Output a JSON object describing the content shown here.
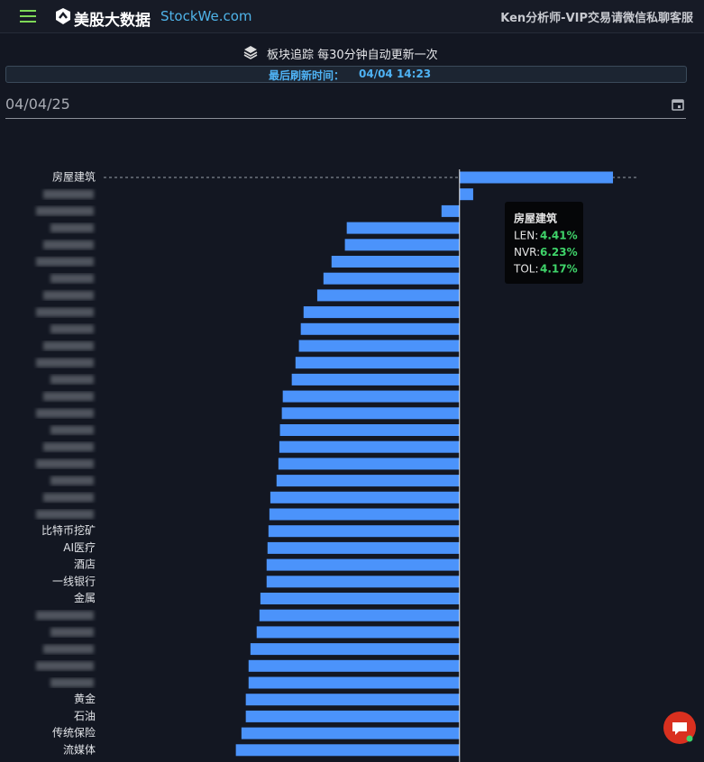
{
  "header": {
    "brand": "美股大数据",
    "site": "StockWe.com",
    "account": "Ken分析师-VIP交易请微信私聊客服"
  },
  "subheader": "板块追踪 每30分钟自动更新一次",
  "refresh": {
    "label": "最后刷新时间：",
    "time": "04/04 14:23"
  },
  "date": "04/04/25",
  "chart_data": {
    "type": "hbar",
    "color": "#4b93fb",
    "categories": [
      "房屋建筑",
      null,
      null,
      null,
      null,
      null,
      null,
      null,
      null,
      null,
      null,
      null,
      null,
      null,
      null,
      null,
      null,
      null,
      null,
      null,
      null,
      "比特币挖矿",
      "AI医疗",
      "酒店",
      "一线银行",
      "金属",
      null,
      null,
      null,
      null,
      null,
      "黄金",
      "石油",
      "传统保险",
      "流媒体"
    ],
    "values": [
      4.94,
      0.44,
      -0.58,
      -3.63,
      -3.69,
      -4.12,
      -4.38,
      -4.58,
      -5.02,
      -5.11,
      -5.17,
      -5.28,
      -5.4,
      -5.69,
      -5.72,
      -5.78,
      -5.8,
      -5.83,
      -5.89,
      -6.09,
      -6.12,
      -6.15,
      -6.18,
      -6.21,
      -6.21,
      -6.41,
      -6.44,
      -6.53,
      -6.73,
      -6.79,
      -6.79,
      -6.88,
      -6.88,
      -7.02,
      -7.2
    ],
    "xlim": [
      -11.6,
      6.1
    ],
    "tooltip": {
      "title": "房屋建筑",
      "items": [
        {
          "name": "LEN:",
          "value": "4.41%"
        },
        {
          "name": "NVR:",
          "value": "6.23%"
        },
        {
          "name": "TOL:",
          "value": "4.17%"
        }
      ]
    }
  }
}
